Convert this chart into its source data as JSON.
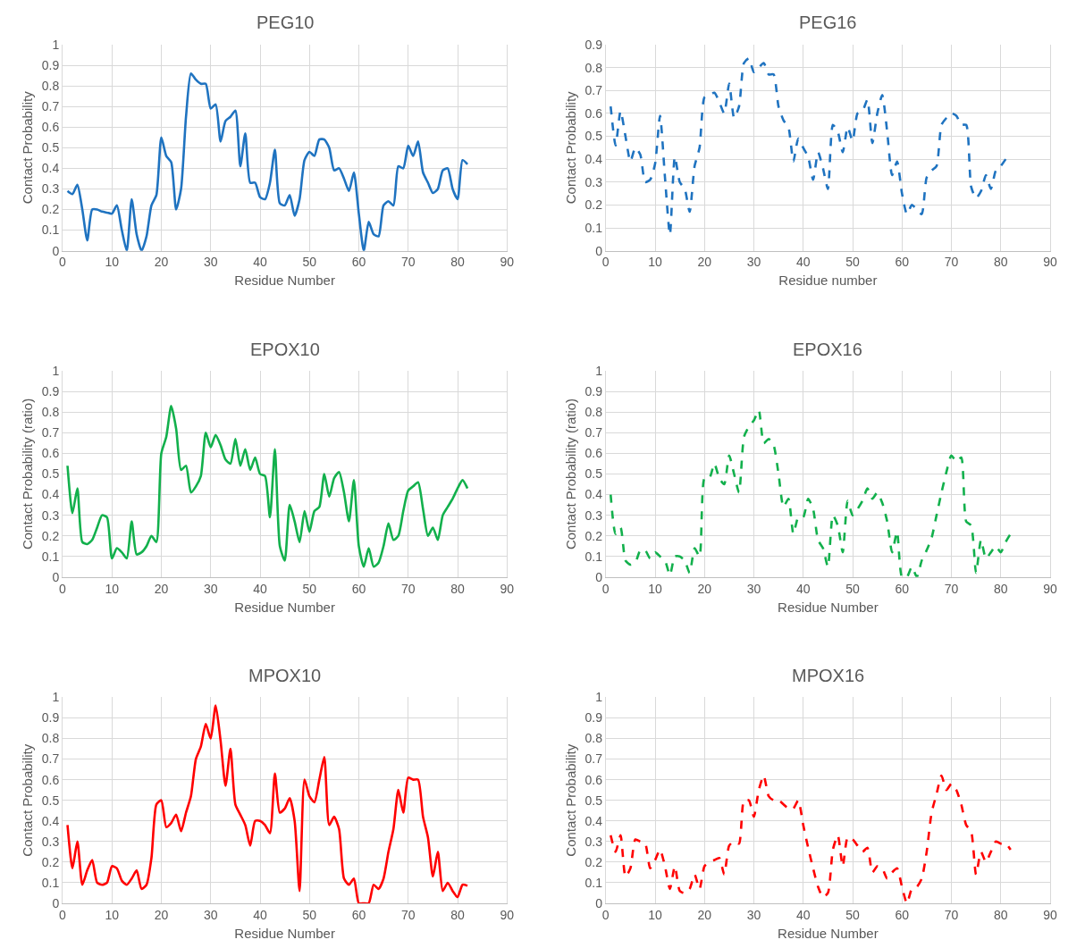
{
  "chart_data": [
    {
      "type": "line",
      "title": "PEG10",
      "xlabel": "Residue Number",
      "ylabel": "Contact Probability",
      "xlim": [
        0,
        90
      ],
      "xticks": [
        0,
        10,
        20,
        30,
        40,
        50,
        60,
        70,
        80,
        90
      ],
      "ylim": [
        0,
        1
      ],
      "yticks": [
        0,
        0.1,
        0.2,
        0.3,
        0.4,
        0.5,
        0.6,
        0.7,
        0.8,
        0.9,
        1
      ],
      "grid": true,
      "line_style": "solid",
      "marker": "none",
      "x": [
        1,
        2,
        3,
        4,
        5,
        6,
        7,
        8,
        9,
        10,
        11,
        12,
        13,
        14,
        15,
        16,
        17,
        18,
        19,
        20,
        21,
        22,
        23,
        24,
        25,
        26,
        27,
        28,
        29,
        30,
        31,
        32,
        33,
        34,
        35,
        36,
        37,
        38,
        39,
        40,
        41,
        42,
        43,
        44,
        45,
        46,
        47,
        48,
        49,
        50,
        51,
        52,
        53,
        54,
        55,
        56,
        57,
        58,
        59,
        60,
        61,
        62,
        63,
        64,
        65,
        66,
        67,
        68,
        69,
        70,
        71,
        72,
        73,
        74,
        75,
        76,
        77,
        78,
        79,
        80,
        81,
        82
      ],
      "series": [
        {
          "color": "#1f73c0",
          "values": [
            0.29,
            0.275,
            0.32,
            0.2,
            0.05,
            0.2,
            0.2,
            0.19,
            0.185,
            0.18,
            0.22,
            0.1,
            0.0,
            0.25,
            0.08,
            0.0,
            0.07,
            0.22,
            0.27,
            0.55,
            0.46,
            0.43,
            0.2,
            0.3,
            0.65,
            0.86,
            0.83,
            0.81,
            0.81,
            0.69,
            0.71,
            0.53,
            0.63,
            0.65,
            0.68,
            0.41,
            0.57,
            0.33,
            0.33,
            0.26,
            0.25,
            0.33,
            0.49,
            0.23,
            0.22,
            0.27,
            0.17,
            0.25,
            0.44,
            0.48,
            0.46,
            0.54,
            0.54,
            0.5,
            0.39,
            0.4,
            0.35,
            0.29,
            0.38,
            0.18,
            0.0,
            0.14,
            0.08,
            0.07,
            0.22,
            0.24,
            0.22,
            0.41,
            0.4,
            0.51,
            0.46,
            0.53,
            0.38,
            0.33,
            0.28,
            0.3,
            0.39,
            0.4,
            0.3,
            0.25,
            0.44,
            0.42
          ]
        }
      ]
    },
    {
      "type": "line",
      "title": "PEG16",
      "xlabel": "Residue number",
      "ylabel": "Contact Probability",
      "xlim": [
        0,
        90
      ],
      "xticks": [
        0,
        10,
        20,
        30,
        40,
        50,
        60,
        70,
        80,
        90
      ],
      "ylim": [
        0,
        0.9
      ],
      "yticks": [
        0,
        0.1,
        0.2,
        0.3,
        0.4,
        0.5,
        0.6,
        0.7,
        0.8,
        0.9
      ],
      "grid": true,
      "line_style": "dashed",
      "marker": "none",
      "x": [
        1,
        2,
        3,
        4,
        5,
        6,
        7,
        8,
        9,
        10,
        11,
        12,
        13,
        14,
        15,
        16,
        17,
        18,
        19,
        20,
        21,
        22,
        23,
        24,
        25,
        26,
        27,
        28,
        29,
        30,
        31,
        32,
        33,
        34,
        35,
        36,
        37,
        38,
        39,
        40,
        41,
        42,
        43,
        44,
        45,
        46,
        47,
        48,
        49,
        50,
        51,
        52,
        53,
        54,
        55,
        56,
        57,
        58,
        59,
        60,
        61,
        62,
        63,
        64,
        65,
        66,
        67,
        68,
        69,
        70,
        71,
        72,
        73,
        74,
        75,
        76,
        77,
        78,
        79,
        80,
        81
      ],
      "series": [
        {
          "color": "#1f73c0",
          "values": [
            0.63,
            0.46,
            0.61,
            0.5,
            0.39,
            0.45,
            0.42,
            0.3,
            0.31,
            0.38,
            0.59,
            0.32,
            0.07,
            0.41,
            0.3,
            0.27,
            0.17,
            0.37,
            0.45,
            0.67,
            0.68,
            0.69,
            0.65,
            0.6,
            0.73,
            0.58,
            0.63,
            0.82,
            0.84,
            0.78,
            0.8,
            0.82,
            0.77,
            0.77,
            0.63,
            0.57,
            0.54,
            0.39,
            0.49,
            0.45,
            0.41,
            0.31,
            0.43,
            0.36,
            0.27,
            0.55,
            0.52,
            0.43,
            0.54,
            0.48,
            0.6,
            0.61,
            0.66,
            0.47,
            0.6,
            0.68,
            0.52,
            0.33,
            0.39,
            0.25,
            0.16,
            0.2,
            0.18,
            0.16,
            0.32,
            0.35,
            0.37,
            0.55,
            0.58,
            0.6,
            0.59,
            0.55,
            0.55,
            0.28,
            0.23,
            0.26,
            0.33,
            0.27,
            0.35,
            0.37,
            0.4
          ]
        }
      ]
    },
    {
      "type": "line",
      "title": "EPOX10",
      "xlabel": "Residue Number",
      "ylabel": "Contact Probability (ratio)",
      "xlim": [
        0,
        90
      ],
      "xticks": [
        0,
        10,
        20,
        30,
        40,
        50,
        60,
        70,
        80,
        90
      ],
      "ylim": [
        0,
        1
      ],
      "yticks": [
        0,
        0.1,
        0.2,
        0.3,
        0.4,
        0.5,
        0.6,
        0.7,
        0.8,
        0.9,
        1
      ],
      "grid": true,
      "line_style": "solid",
      "marker": "none",
      "x": [
        1,
        2,
        3,
        4,
        5,
        6,
        7,
        8,
        9,
        10,
        11,
        12,
        13,
        14,
        15,
        16,
        17,
        18,
        19,
        20,
        21,
        22,
        23,
        24,
        25,
        26,
        27,
        28,
        29,
        30,
        31,
        32,
        33,
        34,
        35,
        36,
        37,
        38,
        39,
        40,
        41,
        42,
        43,
        44,
        45,
        46,
        47,
        48,
        49,
        50,
        51,
        52,
        53,
        54,
        55,
        56,
        57,
        58,
        59,
        60,
        61,
        62,
        63,
        64,
        65,
        66,
        67,
        68,
        69,
        70,
        71,
        72,
        73,
        74,
        75,
        76,
        77,
        78,
        79,
        80,
        81,
        82
      ],
      "series": [
        {
          "color": "#12b04c",
          "values": [
            0.54,
            0.31,
            0.43,
            0.17,
            0.16,
            0.18,
            0.24,
            0.3,
            0.29,
            0.09,
            0.14,
            0.12,
            0.09,
            0.27,
            0.11,
            0.12,
            0.15,
            0.2,
            0.17,
            0.6,
            0.68,
            0.83,
            0.72,
            0.52,
            0.54,
            0.41,
            0.44,
            0.49,
            0.7,
            0.63,
            0.69,
            0.64,
            0.57,
            0.55,
            0.67,
            0.54,
            0.62,
            0.52,
            0.58,
            0.5,
            0.49,
            0.29,
            0.62,
            0.15,
            0.08,
            0.35,
            0.27,
            0.17,
            0.32,
            0.22,
            0.32,
            0.34,
            0.5,
            0.39,
            0.48,
            0.51,
            0.41,
            0.27,
            0.47,
            0.15,
            0.05,
            0.14,
            0.05,
            0.07,
            0.15,
            0.26,
            0.18,
            0.2,
            0.32,
            0.42,
            0.44,
            0.46,
            0.33,
            0.2,
            0.24,
            0.18,
            0.3,
            0.34,
            0.38,
            0.43,
            0.47,
            0.43
          ]
        }
      ]
    },
    {
      "type": "line",
      "title": "EPOX16",
      "xlabel": "Residue Number",
      "ylabel": "Contact Probability (ratio)",
      "xlim": [
        0,
        90
      ],
      "xticks": [
        0,
        10,
        20,
        30,
        40,
        50,
        60,
        70,
        80,
        90
      ],
      "ylim": [
        0,
        1
      ],
      "yticks": [
        0,
        0.1,
        0.2,
        0.3,
        0.4,
        0.5,
        0.6,
        0.7,
        0.8,
        0.9,
        1
      ],
      "grid": true,
      "line_style": "dashed",
      "marker": "none",
      "x": [
        1,
        2,
        3,
        4,
        5,
        6,
        7,
        8,
        9,
        10,
        11,
        12,
        13,
        14,
        15,
        16,
        17,
        18,
        19,
        20,
        21,
        22,
        23,
        24,
        25,
        26,
        27,
        28,
        29,
        30,
        31,
        32,
        33,
        34,
        35,
        36,
        37,
        38,
        39,
        40,
        41,
        42,
        43,
        44,
        45,
        46,
        47,
        48,
        49,
        50,
        51,
        52,
        53,
        54,
        55,
        56,
        57,
        58,
        59,
        60,
        61,
        62,
        63,
        64,
        65,
        66,
        67,
        68,
        69,
        70,
        71,
        72,
        73,
        74,
        75,
        76,
        77,
        78,
        79,
        80,
        81,
        82
      ],
      "series": [
        {
          "color": "#12b04c",
          "values": [
            0.4,
            0.21,
            0.24,
            0.08,
            0.06,
            0.07,
            0.13,
            0.13,
            0.09,
            0.12,
            0.1,
            0.08,
            0.01,
            0.1,
            0.1,
            0.08,
            0.02,
            0.14,
            0.1,
            0.48,
            0.48,
            0.55,
            0.48,
            0.45,
            0.59,
            0.5,
            0.41,
            0.68,
            0.73,
            0.76,
            0.81,
            0.65,
            0.67,
            0.64,
            0.5,
            0.34,
            0.38,
            0.21,
            0.29,
            0.29,
            0.38,
            0.33,
            0.18,
            0.14,
            0.05,
            0.3,
            0.25,
            0.12,
            0.37,
            0.3,
            0.33,
            0.37,
            0.43,
            0.38,
            0.41,
            0.36,
            0.27,
            0.12,
            0.22,
            0.0,
            0.0,
            0.05,
            0.0,
            0.08,
            0.13,
            0.19,
            0.3,
            0.41,
            0.51,
            0.59,
            0.56,
            0.58,
            0.27,
            0.25,
            0.02,
            0.18,
            0.09,
            0.12,
            0.15,
            0.12,
            0.17,
            0.21
          ]
        }
      ]
    },
    {
      "type": "line",
      "title": "MPOX10",
      "xlabel": "Residue Number",
      "ylabel": "Contact Probability",
      "xlim": [
        0,
        90
      ],
      "xticks": [
        0,
        10,
        20,
        30,
        40,
        50,
        60,
        70,
        80,
        90
      ],
      "ylim": [
        0,
        1
      ],
      "yticks": [
        0,
        0.1,
        0.2,
        0.3,
        0.4,
        0.5,
        0.6,
        0.7,
        0.8,
        0.9,
        1
      ],
      "grid": true,
      "line_style": "solid",
      "marker": "none",
      "x": [
        1,
        2,
        3,
        4,
        5,
        6,
        7,
        8,
        9,
        10,
        11,
        12,
        13,
        14,
        15,
        16,
        17,
        18,
        19,
        20,
        21,
        22,
        23,
        24,
        25,
        26,
        27,
        28,
        29,
        30,
        31,
        32,
        33,
        34,
        35,
        36,
        37,
        38,
        39,
        40,
        41,
        42,
        43,
        44,
        45,
        46,
        47,
        48,
        49,
        50,
        51,
        52,
        53,
        54,
        55,
        56,
        57,
        58,
        59,
        60,
        61,
        62,
        63,
        64,
        65,
        66,
        67,
        68,
        69,
        70,
        71,
        72,
        73,
        74,
        75,
        76,
        77,
        78,
        79,
        80,
        81,
        82
      ],
      "series": [
        {
          "color": "#ff0000",
          "values": [
            0.38,
            0.17,
            0.3,
            0.09,
            0.16,
            0.21,
            0.1,
            0.09,
            0.1,
            0.18,
            0.17,
            0.11,
            0.09,
            0.12,
            0.16,
            0.07,
            0.09,
            0.22,
            0.48,
            0.5,
            0.37,
            0.39,
            0.43,
            0.35,
            0.44,
            0.52,
            0.7,
            0.76,
            0.87,
            0.8,
            0.96,
            0.79,
            0.57,
            0.75,
            0.48,
            0.43,
            0.38,
            0.28,
            0.4,
            0.4,
            0.38,
            0.34,
            0.63,
            0.44,
            0.46,
            0.51,
            0.4,
            0.06,
            0.6,
            0.52,
            0.49,
            0.6,
            0.71,
            0.38,
            0.42,
            0.36,
            0.12,
            0.09,
            0.12,
            0.0,
            0.0,
            0.0,
            0.09,
            0.07,
            0.12,
            0.25,
            0.36,
            0.55,
            0.44,
            0.61,
            0.6,
            0.6,
            0.42,
            0.32,
            0.13,
            0.25,
            0.06,
            0.1,
            0.06,
            0.03,
            0.09,
            0.085
          ]
        }
      ]
    },
    {
      "type": "line",
      "title": "MPOX16",
      "xlabel": "Residue Number",
      "ylabel": "Contact Probability",
      "xlim": [
        0,
        90
      ],
      "xticks": [
        0,
        10,
        20,
        30,
        40,
        50,
        60,
        70,
        80,
        90
      ],
      "ylim": [
        0,
        1
      ],
      "yticks": [
        0,
        0.1,
        0.2,
        0.3,
        0.4,
        0.5,
        0.6,
        0.7,
        0.8,
        0.9,
        1
      ],
      "grid": true,
      "line_style": "dashed",
      "marker": "none",
      "x": [
        1,
        2,
        3,
        4,
        5,
        6,
        7,
        8,
        9,
        10,
        11,
        12,
        13,
        14,
        15,
        16,
        17,
        18,
        19,
        20,
        21,
        22,
        23,
        24,
        25,
        26,
        27,
        28,
        29,
        30,
        31,
        32,
        33,
        34,
        35,
        36,
        37,
        38,
        39,
        40,
        41,
        42,
        43,
        44,
        45,
        46,
        47,
        48,
        49,
        50,
        51,
        52,
        53,
        54,
        55,
        56,
        57,
        58,
        59,
        60,
        61,
        62,
        63,
        64,
        65,
        66,
        67,
        68,
        69,
        70,
        71,
        72,
        73,
        74,
        75,
        76,
        77,
        78,
        79,
        80,
        81,
        82
      ],
      "series": [
        {
          "color": "#ff0000",
          "values": [
            0.33,
            0.25,
            0.33,
            0.13,
            0.17,
            0.31,
            0.3,
            0.29,
            0.17,
            0.21,
            0.26,
            0.18,
            0.07,
            0.18,
            0.06,
            0.05,
            0.07,
            0.14,
            0.07,
            0.18,
            0.2,
            0.21,
            0.22,
            0.14,
            0.28,
            0.3,
            0.29,
            0.5,
            0.5,
            0.42,
            0.55,
            0.62,
            0.52,
            0.5,
            0.5,
            0.48,
            0.46,
            0.46,
            0.5,
            0.38,
            0.27,
            0.17,
            0.08,
            0.03,
            0.05,
            0.26,
            0.33,
            0.18,
            0.32,
            0.31,
            0.28,
            0.25,
            0.27,
            0.15,
            0.18,
            0.17,
            0.12,
            0.15,
            0.17,
            0.08,
            0.0,
            0.07,
            0.08,
            0.12,
            0.25,
            0.44,
            0.53,
            0.62,
            0.55,
            0.58,
            0.55,
            0.48,
            0.38,
            0.35,
            0.14,
            0.25,
            0.2,
            0.25,
            0.3,
            0.29,
            0.29,
            0.26
          ]
        }
      ]
    }
  ]
}
